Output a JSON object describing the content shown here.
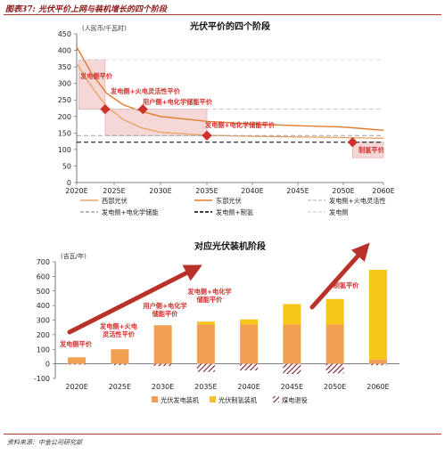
{
  "figure": {
    "caption": "图表37: 光伏平价上网与装机增长的四个阶段",
    "source": "资料来源：中金公司研究部"
  },
  "chart_data": [
    {
      "type": "line",
      "title": "光伏平价的四个阶段",
      "ylabel": "(人民币/千瓦时)",
      "ylim": [
        0,
        450
      ],
      "yticks": [
        "0",
        "50",
        "100",
        "150",
        "200",
        "250",
        "300",
        "350",
        "400",
        "450"
      ],
      "xticks": [
        "2020E",
        "2025E",
        "2030E",
        "2035E",
        "2040E",
        "2045E",
        "2050E",
        "2060E"
      ],
      "xlim": [
        2020,
        2060
      ],
      "grid": false,
      "legend_position": "bottom",
      "series": [
        {
          "name": "西部光伏",
          "style": "solid",
          "color": "#e8a464",
          "x": [
            2020,
            2022,
            2024,
            2026,
            2028,
            2030,
            2035,
            2040,
            2045,
            2050,
            2055,
            2060
          ],
          "y": [
            360,
            290,
            230,
            190,
            165,
            152,
            143,
            140,
            138,
            136,
            135,
            134
          ]
        },
        {
          "name": "东部光伏",
          "style": "solid",
          "color": "#e07b2a",
          "x": [
            2020,
            2022,
            2024,
            2026,
            2028,
            2030,
            2035,
            2040,
            2045,
            2050,
            2055,
            2060
          ],
          "y": [
            410,
            330,
            270,
            235,
            215,
            200,
            185,
            177,
            172,
            168,
            163,
            158
          ]
        },
        {
          "name": "发电侧+火电灵活性",
          "style": "dashed",
          "color": "#c8c8c8",
          "x": [
            2020,
            2060
          ],
          "y": [
            222,
            222
          ]
        },
        {
          "name": "发电侧+电化学储能",
          "style": "dashed",
          "color": "#a0a0a0",
          "x": [
            2020,
            2060
          ],
          "y": [
            142,
            142
          ]
        },
        {
          "name": "发电侧+制氢",
          "style": "dashed",
          "color": "#000000",
          "x": [
            2020,
            2060
          ],
          "y": [
            122,
            122
          ]
        },
        {
          "name": "发电侧",
          "style": "dashed",
          "color": "#dcdcdc",
          "x": [
            2020,
            2060
          ],
          "y": [
            372,
            372
          ]
        }
      ],
      "shaded_regions": [
        {
          "x": [
            2020.3,
            2023.8
          ],
          "y": [
            222,
            372
          ]
        },
        {
          "x": [
            2023.8,
            2035
          ],
          "y": [
            142,
            222
          ]
        },
        {
          "x": [
            2052.3,
            2060
          ],
          "y": [
            75,
            122
          ]
        }
      ],
      "markers": [
        {
          "x": 2023.8,
          "y": 222,
          "label": "发电侧平价"
        },
        {
          "x": 2028.1,
          "y": 222,
          "label": "发电侧+火电灵活性平价"
        },
        {
          "x": 2035,
          "y": 142,
          "label": "用户侧+电化学储能平价"
        },
        {
          "x": 2052.3,
          "y": 122,
          "label": "发电侧+电化学储能平价"
        },
        {
          "x": 2052.3,
          "y": 122,
          "label": "制氢平价"
        }
      ]
    },
    {
      "type": "bar",
      "title": "对应光伏装机阶段",
      "ylabel": "(吉瓦/年)",
      "ylim": [
        -100,
        700
      ],
      "yticks": [
        "-100",
        "0",
        "100",
        "200",
        "300",
        "400",
        "500",
        "600",
        "700"
      ],
      "categories": [
        "2020E",
        "2025E",
        "2030E",
        "2035E",
        "2040E",
        "2045E",
        "2050E",
        "2060E"
      ],
      "stacked": true,
      "legend_position": "bottom",
      "series": [
        {
          "name": "光伏发电装机",
          "color": "#f0a050",
          "values": [
            45,
            100,
            265,
            270,
            270,
            270,
            270,
            30
          ]
        },
        {
          "name": "光伏制氢装机",
          "color": "#f5c518",
          "values": [
            0,
            0,
            0,
            20,
            35,
            140,
            175,
            615
          ]
        },
        {
          "name": "煤电退役",
          "color": "#7a1f2b",
          "hatched": true,
          "values": [
            -5,
            -8,
            -15,
            -55,
            -45,
            -70,
            -65,
            -10
          ]
        }
      ],
      "annotations": [
        {
          "category": "2020E",
          "text": [
            "发电侧平价"
          ]
        },
        {
          "category": "2025E",
          "text": [
            "发电侧+火电",
            "灵活性平价"
          ]
        },
        {
          "category": "2030E",
          "text": [
            "用户侧+电化学",
            "储能平价"
          ]
        },
        {
          "category": "2035E",
          "text": [
            "发电侧+电化学",
            "储能平价"
          ]
        },
        {
          "category": "2050E",
          "text": [
            "制氢平价"
          ]
        }
      ]
    }
  ]
}
